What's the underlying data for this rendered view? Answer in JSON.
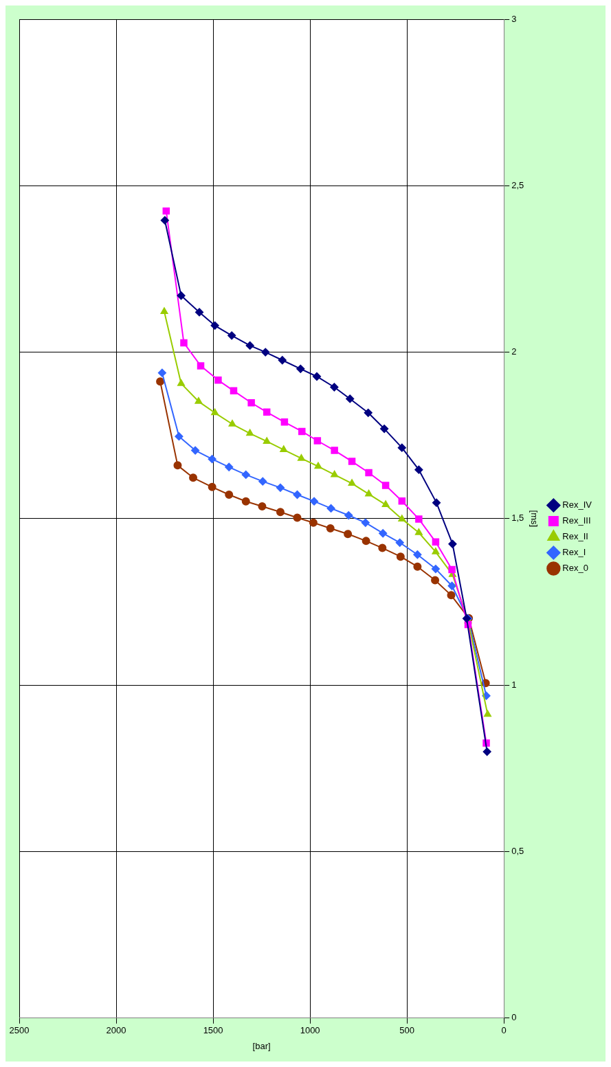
{
  "chart_data": {
    "type": "line",
    "xlabel": "[bar]",
    "ylabel": "[ms]",
    "xlim": [
      2500,
      0
    ],
    "ylim": [
      0,
      3
    ],
    "yticks": [
      0,
      {
        "value": 0.5,
        "label": "0,5"
      },
      1,
      {
        "value": 1.5,
        "label": "1,5"
      },
      2,
      {
        "value": 2.5,
        "label": "2,5"
      },
      3
    ],
    "xticks": [
      0,
      500,
      1000,
      1500,
      2000,
      2500
    ],
    "grid": true,
    "legend": "right",
    "line_style": "solid",
    "series": [
      {
        "name": "Rex_IV",
        "color": "#000080",
        "marker": "diamond",
        "values": [
          0.8,
          1.2,
          1.424,
          1.548,
          1.647,
          1.713,
          1.77,
          1.818,
          1.86,
          1.895,
          1.927,
          1.95,
          1.976,
          2.0,
          2.02,
          2.05,
          2.08,
          2.12,
          2.17,
          2.396
        ],
        "x": [
          87,
          192,
          265,
          348,
          439,
          526,
          617,
          700,
          794,
          875,
          965,
          1049,
          1143,
          1230,
          1310,
          1404,
          1491,
          1571,
          1665,
          1749
        ]
      },
      {
        "name": "Rex_III",
        "color": "#ff00ff",
        "marker": "square",
        "values": [
          0.826,
          1.182,
          1.347,
          1.43,
          1.499,
          1.553,
          1.6,
          1.638,
          1.672,
          1.705,
          1.734,
          1.762,
          1.79,
          1.82,
          1.848,
          1.884,
          1.916,
          1.959,
          2.028,
          2.424
        ],
        "x": [
          91,
          185,
          268,
          352,
          439,
          526,
          610,
          697,
          784,
          874,
          962,
          1042,
          1132,
          1223,
          1303,
          1394,
          1474,
          1564,
          1651,
          1742
        ]
      },
      {
        "name": "Rex_II",
        "color": "#99cc00",
        "marker": "triangle",
        "values": [
          0.912,
          1.193,
          1.332,
          1.4,
          1.458,
          1.499,
          1.542,
          1.574,
          1.606,
          1.632,
          1.657,
          1.681,
          1.707,
          1.732,
          1.756,
          1.784,
          1.818,
          1.852,
          1.906,
          2.122
        ],
        "x": [
          84,
          185,
          265,
          352,
          439,
          526,
          610,
          697,
          784,
          874,
          958,
          1045,
          1136,
          1223,
          1310,
          1401,
          1491,
          1575,
          1665,
          1752
        ]
      },
      {
        "name": "Rex_I",
        "color": "#3366ff",
        "marker": "diamond",
        "values": [
          0.968,
          1.2,
          1.298,
          1.349,
          1.392,
          1.428,
          1.456,
          1.488,
          1.51,
          1.531,
          1.552,
          1.572,
          1.593,
          1.612,
          1.632,
          1.655,
          1.679,
          1.705,
          1.747,
          1.938
        ],
        "x": [
          91,
          185,
          268,
          352,
          446,
          537,
          624,
          714,
          801,
          892,
          979,
          1066,
          1153,
          1244,
          1331,
          1418,
          1505,
          1592,
          1676,
          1763
        ]
      },
      {
        "name": "Rex_0",
        "color": "#993300",
        "marker": "circle",
        "values": [
          1.006,
          1.201,
          1.27,
          1.315,
          1.356,
          1.386,
          1.412,
          1.433,
          1.454,
          1.471,
          1.488,
          1.503,
          1.52,
          1.537,
          1.552,
          1.572,
          1.595,
          1.623,
          1.66,
          1.912
        ],
        "x": [
          94,
          181,
          272,
          355,
          446,
          533,
          627,
          711,
          805,
          895,
          983,
          1066,
          1153,
          1247,
          1331,
          1418,
          1505,
          1603,
          1683,
          1773
        ]
      }
    ]
  }
}
